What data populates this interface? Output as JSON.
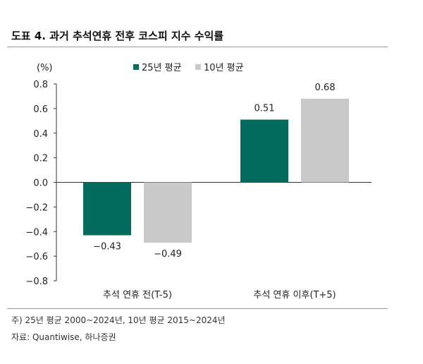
{
  "title": "도표 4. 과거 추석연휴 전후 코스피 지수 수익률",
  "notes": {
    "line1": "주) 25년 평균 2000~2024년, 10년 평균 2015~2024년",
    "line2": "자료: Quantiwise, 하나증권"
  },
  "chart_data": {
    "type": "bar",
    "unit": "(%)",
    "categories": [
      "추석 연휴 전(T-5)",
      "추석 연휴 이후(T+5)"
    ],
    "series": [
      {
        "name": "25년 평균",
        "color": "#036b5e",
        "values": [
          -0.43,
          0.51
        ],
        "labels": [
          "-0.43",
          "0.51"
        ]
      },
      {
        "name": "10년 평균",
        "color": "#c9c9c9",
        "values": [
          -0.49,
          0.68
        ],
        "labels": [
          "-0.49",
          "0.68"
        ]
      }
    ],
    "ylim": [
      -0.8,
      0.8
    ],
    "yticks": [
      "0.8",
      "0.6",
      "0.4",
      "0.2",
      "0.0",
      "-0.2",
      "-0.4",
      "-0.6",
      "-0.8"
    ],
    "legend_position": "top-center",
    "grid": false
  }
}
